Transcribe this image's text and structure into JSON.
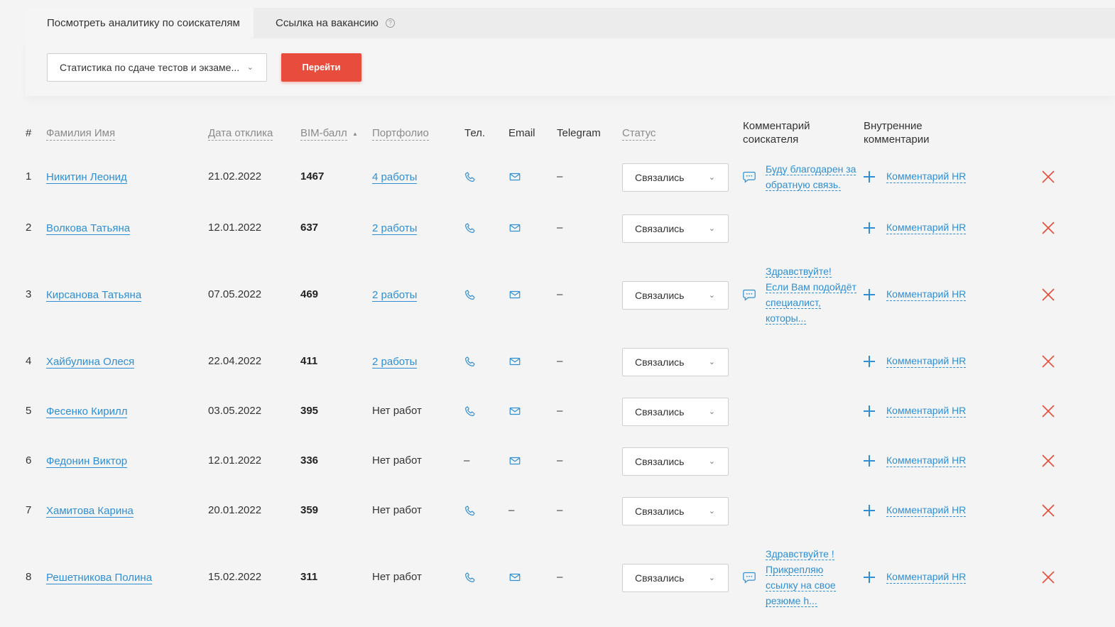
{
  "tabs": {
    "active": "Посмотреть аналитику по соискателям",
    "inactive": "Ссылка на вакансию",
    "help": "?"
  },
  "filter": {
    "selected_report": "Статистика по сдаче тестов и экзаме...",
    "go_button": "Перейти"
  },
  "columns": {
    "num": "#",
    "name": "Фамилия Имя",
    "date": "Дата отклика",
    "score": "BIM-балл",
    "portfolio": "Портфолио",
    "phone": "Тел.",
    "email": "Email",
    "telegram": "Telegram",
    "status": "Статус",
    "candidate_comment_1": "Комментарий",
    "candidate_comment_2": "соискателя",
    "internal_comment_1": "Внутренние",
    "internal_comment_2": "комментарии"
  },
  "sort": {
    "column": "BIM-балл",
    "direction": "asc-indicator"
  },
  "hr_comment_label": "Комментарий HR",
  "rows": [
    {
      "num": "1",
      "name": "Никитин Леонид",
      "date": "21.02.2022",
      "score": "1467",
      "portfolio": "4 работы",
      "has_portfolio": true,
      "phone": true,
      "email": true,
      "telegram": "–",
      "status": "Связались",
      "comment": [
        "Буду благодарен за",
        "обратную связь."
      ]
    },
    {
      "num": "2",
      "name": "Волкова Татьяна",
      "date": "12.01.2022",
      "score": "637",
      "portfolio": "2 работы",
      "has_portfolio": true,
      "phone": true,
      "email": true,
      "telegram": "–",
      "status": "Связались",
      "comment": []
    },
    {
      "num": "3",
      "name": "Кирсанова Татьяна",
      "date": "07.05.2022",
      "score": "469",
      "portfolio": "2 работы",
      "has_portfolio": true,
      "phone": true,
      "email": true,
      "telegram": "–",
      "status": "Связались",
      "comment": [
        "Здравствуйте!",
        "Если Вам подойдёт",
        "специалист,",
        "которы..."
      ]
    },
    {
      "num": "4",
      "name": "Хайбулина Олеся",
      "date": "22.04.2022",
      "score": "411",
      "portfolio": "2 работы",
      "has_portfolio": true,
      "phone": true,
      "email": true,
      "telegram": "–",
      "status": "Связались",
      "comment": []
    },
    {
      "num": "5",
      "name": "Фесенко Кирилл",
      "date": "03.05.2022",
      "score": "395",
      "portfolio": "Нет работ",
      "has_portfolio": false,
      "phone": true,
      "email": true,
      "telegram": "–",
      "status": "Связались",
      "comment": []
    },
    {
      "num": "6",
      "name": "Федонин Виктор",
      "date": "12.01.2022",
      "score": "336",
      "portfolio": "Нет работ",
      "has_portfolio": false,
      "phone": false,
      "phone_text": "–",
      "email": true,
      "telegram": "–",
      "status": "Связались",
      "comment": []
    },
    {
      "num": "7",
      "name": "Хамитова Карина",
      "date": "20.01.2022",
      "score": "359",
      "portfolio": "Нет работ",
      "has_portfolio": false,
      "phone": true,
      "email": false,
      "email_text": "–",
      "telegram": "–",
      "status": "Связались",
      "comment": []
    },
    {
      "num": "8",
      "name": "Решетникова Полина",
      "date": "15.02.2022",
      "score": "311",
      "portfolio": "Нет работ",
      "has_portfolio": false,
      "phone": true,
      "email": true,
      "telegram": "–",
      "status": "Связались",
      "comment": [
        "Здравствуйте !",
        "Прикрепляю",
        "ссылку на свое",
        "резюме h..."
      ]
    }
  ],
  "colors": {
    "accent": "#e74c3c",
    "link": "#2f8fd4",
    "delete": "#e74c3c"
  }
}
